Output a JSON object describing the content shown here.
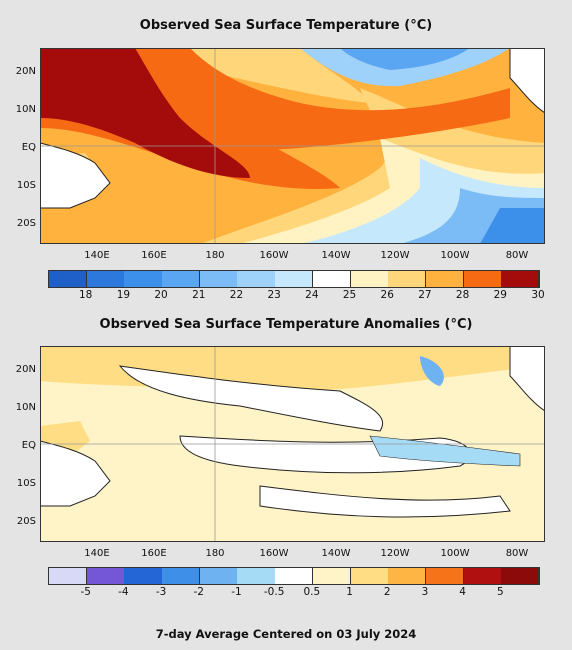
{
  "map1": {
    "title": "Observed Sea Surface Temperature (°C)",
    "lat_labels": [
      "20N",
      "10N",
      "EQ",
      "10S",
      "20S"
    ],
    "lon_labels": [
      "140E",
      "160E",
      "180",
      "160W",
      "140W",
      "120W",
      "100W",
      "80W"
    ],
    "colorbar": {
      "labels": [
        "18",
        "19",
        "20",
        "21",
        "22",
        "23",
        "24",
        "25",
        "26",
        "27",
        "28",
        "29",
        "30"
      ],
      "colors": [
        "#1f5fc8",
        "#2c78dd",
        "#3c90ea",
        "#5aa6f2",
        "#7bbcf7",
        "#9fd2fa",
        "#c6e8fc",
        "#ffffff",
        "#fff3c4",
        "#ffd77a",
        "#ffb23e",
        "#f66a14",
        "#a40c0c"
      ]
    }
  },
  "map2": {
    "title": "Observed Sea Surface Temperature Anomalies (°C)",
    "lat_labels": [
      "20N",
      "10N",
      "EQ",
      "10S",
      "20S"
    ],
    "lon_labels": [
      "140E",
      "160E",
      "180",
      "160W",
      "140W",
      "120W",
      "100W",
      "80W"
    ],
    "colorbar": {
      "labels": [
        "-5",
        "-4",
        "-3",
        "-2",
        "-1",
        "-0.5",
        "0.5",
        "1",
        "2",
        "3",
        "4",
        "5"
      ],
      "colors": [
        "#d8d8f7",
        "#7457d6",
        "#2466d6",
        "#3d8fe8",
        "#6fb2f2",
        "#a6dbf6",
        "#ffffff",
        "#fff4c8",
        "#ffdd84",
        "#ffb544",
        "#f6731a",
        "#b11010",
        "#8c0a0a"
      ]
    }
  },
  "footer": "7-day Average Centered on 03 July 2024"
}
